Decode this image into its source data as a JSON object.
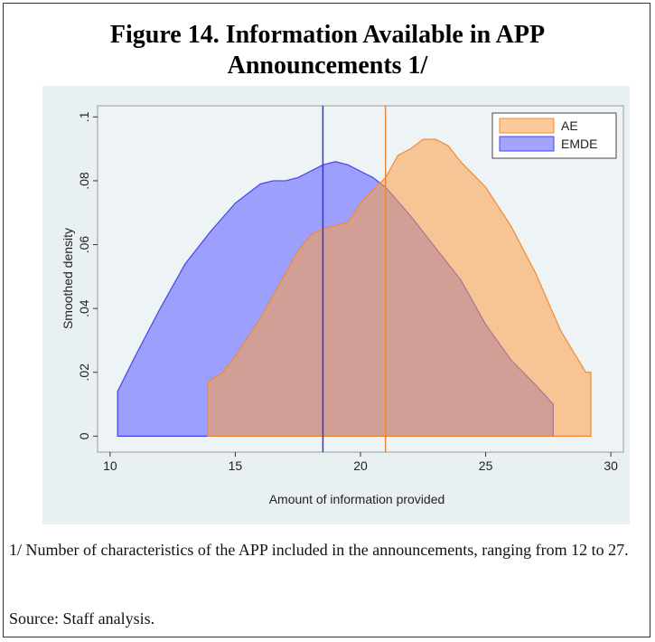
{
  "title": "Figure 14. Information Available in APP Announcements 1/",
  "chart_data": {
    "type": "area",
    "xlabel": "Amount of information provided",
    "ylabel": "Smoothed density",
    "xlim": [
      9.5,
      30.5
    ],
    "xticks": [
      10,
      15,
      20,
      25,
      30
    ],
    "ylim": [
      -0.005,
      0.1035
    ],
    "yticks": [
      0,
      {
        "value": 0.02,
        "label": ".02"
      },
      {
        "value": 0.04,
        "label": ".04"
      },
      {
        "value": 0.06,
        "label": ".06"
      },
      {
        "value": 0.08,
        "label": ".08"
      },
      {
        "value": 0.1,
        "label": ".1"
      }
    ],
    "legend": "top-right",
    "series": [
      {
        "name": "AE",
        "color": "#ff9f45",
        "edge": "#f08a30",
        "x": [
          13.9,
          14.5,
          15,
          16,
          17,
          17.5,
          18,
          18.5,
          19,
          19.5,
          20,
          21,
          21.5,
          22,
          22.5,
          23,
          23.5,
          24,
          25,
          26,
          27,
          28,
          29,
          29.2
        ],
        "values": [
          0.017,
          0.02,
          0.025,
          0.037,
          0.051,
          0.058,
          0.063,
          0.065,
          0.066,
          0.067,
          0.073,
          0.081,
          0.088,
          0.09,
          0.093,
          0.093,
          0.091,
          0.086,
          0.078,
          0.066,
          0.051,
          0.033,
          0.02,
          0.02
        ]
      },
      {
        "name": "EMDE",
        "color": "#5a5aff",
        "edge": "#4444ee",
        "x": [
          10.3,
          11,
          12,
          13,
          14,
          15,
          16,
          16.5,
          17,
          17.5,
          18,
          18.5,
          19,
          19.5,
          20,
          20.5,
          21,
          22,
          23,
          24,
          25,
          26,
          27,
          27.7
        ],
        "values": [
          0.014,
          0.025,
          0.04,
          0.054,
          0.064,
          0.073,
          0.079,
          0.08,
          0.08,
          0.081,
          0.083,
          0.085,
          0.086,
          0.085,
          0.083,
          0.081,
          0.078,
          0.069,
          0.059,
          0.049,
          0.035,
          0.024,
          0.016,
          0.01
        ]
      }
    ],
    "mean_lines": [
      {
        "x": 18.5,
        "color": "#3333dd"
      },
      {
        "x": 21,
        "color": "#e8883a"
      }
    ]
  },
  "footnote": "1/ Number of characteristics of the APP included in the announcements, ranging from 12 to 27.",
  "source": "Source: Staff analysis."
}
